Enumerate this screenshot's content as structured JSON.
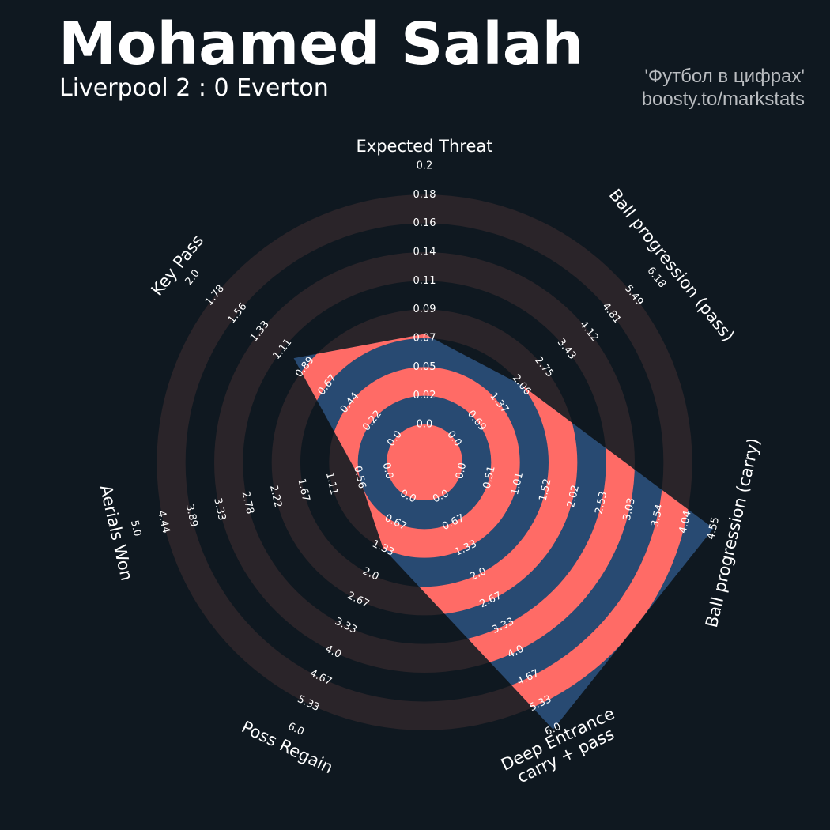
{
  "header": {
    "title": "Mohamed Salah",
    "subtitle": "Liverpool 2 : 0 Everton",
    "credit_line1": "'Футбол в цифрах'",
    "credit_line2": "boosty.to/markstats"
  },
  "colors": {
    "background": "#0f1820",
    "ring": "#2a2429",
    "polygon_fill": "#284a72",
    "player_rings": "#ff6b66",
    "text": "#ffffff",
    "credit": "#b9bcc0"
  },
  "chart_data": {
    "type": "radar",
    "title": "Mohamed Salah",
    "subtitle": "Liverpool 2 : 0 Everton",
    "params": [
      {
        "label": "Expected Threat",
        "min": 0.0,
        "max": 0.2,
        "ticks": [
          "0.0",
          "0.02",
          "0.05",
          "0.07",
          "0.09",
          "0.11",
          "0.14",
          "0.16",
          "0.18",
          "0.2"
        ]
      },
      {
        "label": "Ball progression (pass)",
        "min": 0.0,
        "max": 6.18,
        "ticks": [
          "0.0",
          "0.69",
          "1.37",
          "2.06",
          "2.75",
          "3.43",
          "4.12",
          "4.81",
          "5.49",
          "6.18"
        ]
      },
      {
        "label": "Ball progression (carry)",
        "min": 0.0,
        "max": 4.55,
        "ticks": [
          "0.0",
          "0.51",
          "1.01",
          "1.52",
          "2.02",
          "2.53",
          "3.03",
          "3.54",
          "4.04",
          "4.55"
        ]
      },
      {
        "label": "Deep Entrance carry + pass",
        "label_lines": [
          "Deep Entrance",
          "carry + pass"
        ],
        "min": 0.0,
        "max": 6.0,
        "ticks": [
          "0.0",
          "0.67",
          "1.33",
          "2.0",
          "2.67",
          "3.33",
          "4.0",
          "4.67",
          "5.33",
          "6.0"
        ]
      },
      {
        "label": "Poss Regain",
        "min": 0.0,
        "max": 6.0,
        "ticks": [
          "0.0",
          "0.67",
          "1.33",
          "2.0",
          "2.67",
          "3.33",
          "4.0",
          "4.67",
          "5.33",
          "6.0"
        ]
      },
      {
        "label": "Aerials Won",
        "min": 0.0,
        "max": 5.0,
        "ticks": [
          "0.0",
          "0.56",
          "1.11",
          "1.67",
          "2.22",
          "2.78",
          "3.33",
          "3.89",
          "4.44",
          "5.0"
        ]
      },
      {
        "label": "Key Pass",
        "min": 0.0,
        "max": 2.0,
        "ticks": [
          "0.0",
          "0.22",
          "0.44",
          "0.67",
          "0.89",
          "1.11",
          "1.33",
          "1.56",
          "1.78",
          "2.0"
        ]
      }
    ],
    "series": [
      {
        "values": [
          0.07,
          2.06,
          4.55,
          6.0,
          1.33,
          0.56,
          1.0
        ]
      }
    ],
    "grid": "concentric rings"
  }
}
